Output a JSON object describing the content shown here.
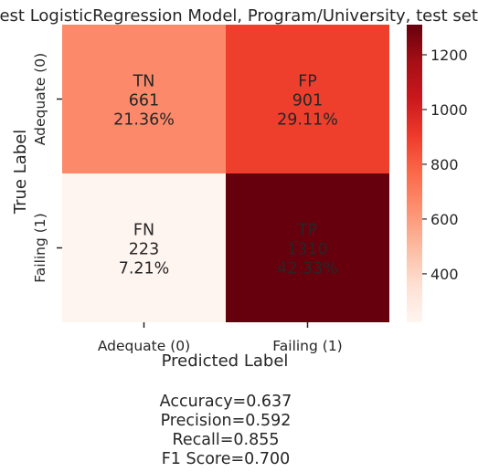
{
  "chart_data": {
    "type": "heatmap",
    "title": "Best LogisticRegression Model, Program/University, test set",
    "xlabel": "Predicted Label",
    "ylabel": "True Label",
    "x_categories": [
      "Adequate (0)",
      "Failing (1)"
    ],
    "y_categories": [
      "Adequate (0)",
      "Failing (1)"
    ],
    "cells": [
      [
        {
          "name": "TN",
          "count": 661,
          "percent": "21.36%",
          "color": "#fc8a6a"
        },
        {
          "name": "FP",
          "count": 901,
          "percent": "29.11%",
          "color": "#ee3f2d"
        }
      ],
      [
        {
          "name": "FN",
          "count": 223,
          "percent": "7.21%",
          "color": "#fff5f0"
        },
        {
          "name": "TP",
          "count": 1310,
          "percent": "42.33%",
          "color": "#67000d"
        }
      ]
    ],
    "values": [
      [
        661,
        901
      ],
      [
        223,
        1310
      ]
    ],
    "colorbar": {
      "colormap": "Reds",
      "range": [
        223,
        1310
      ],
      "ticks": [
        400,
        600,
        800,
        1000,
        1200
      ],
      "tick_labels": [
        "400",
        "600",
        "800",
        "1000",
        "1200"
      ]
    },
    "metrics": [
      "Accuracy=0.637",
      "Precision=0.592",
      "Recall=0.855",
      "F1 Score=0.700"
    ]
  }
}
